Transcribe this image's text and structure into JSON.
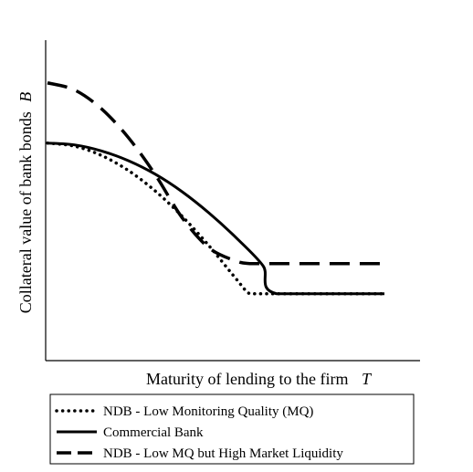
{
  "chart_data": {
    "type": "line",
    "xlabel": "Maturity of lending to the firm",
    "xlabel_symbol": "T",
    "ylabel": "Collateral value of bank bonds",
    "ylabel_symbol": "B",
    "xlim": [
      0,
      100
    ],
    "ylim": [
      0,
      100
    ],
    "legend_position": "bottom",
    "grid": false,
    "series": [
      {
        "name": "NDB - Low Monitoring Quality (MQ)",
        "style": "dotted",
        "color": "#000000",
        "x": [
          0,
          8,
          16,
          24,
          32,
          40,
          48,
          56,
          60,
          64,
          68,
          100
        ],
        "y": [
          75,
          73.8,
          70.1,
          64.1,
          55.9,
          45.8,
          34,
          20.9,
          15,
          15,
          15,
          15
        ]
      },
      {
        "name": "Commercial Bank",
        "style": "solid",
        "color": "#000000",
        "x": [
          0,
          8,
          16,
          24,
          32,
          40,
          48,
          56,
          64,
          68,
          100
        ],
        "y": [
          75,
          74.3,
          71.9,
          68,
          62.6,
          55.6,
          47.1,
          37.3,
          26.1,
          15,
          15
        ]
      },
      {
        "name": "NDB - Low MQ but High Market Liquidity",
        "style": "dashed",
        "color": "#000000",
        "x": [
          0,
          8,
          16,
          24,
          32,
          40,
          48,
          56,
          60,
          64,
          100
        ],
        "y": [
          99,
          96.2,
          88.7,
          77.2,
          62.4,
          45.2,
          33.2,
          28,
          27,
          27,
          27
        ]
      }
    ]
  }
}
